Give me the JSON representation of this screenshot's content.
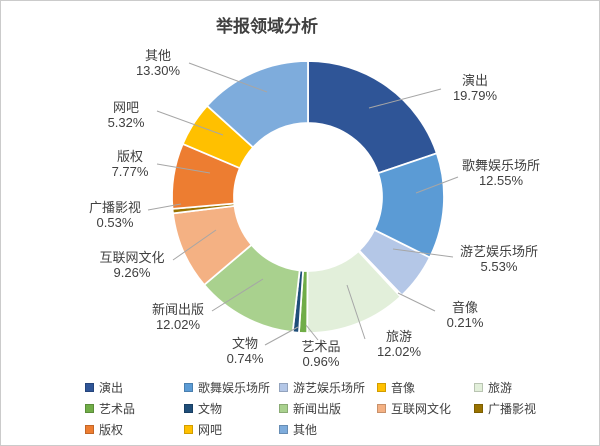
{
  "chart_data": {
    "type": "pie",
    "subtype": "donut",
    "title": "举报领域分析",
    "categories": [
      "演出",
      "歌舞娱乐场所",
      "游艺娱乐场所",
      "音像",
      "旅游",
      "艺术品",
      "文物",
      "新闻出版",
      "互联网文化",
      "广播影视",
      "版权",
      "网吧",
      "其他"
    ],
    "values": [
      19.79,
      12.55,
      5.53,
      0.21,
      12.02,
      0.96,
      0.74,
      12.02,
      9.26,
      0.53,
      7.77,
      5.32,
      13.3
    ],
    "percent_labels": [
      "19.79%",
      "12.55%",
      "5.53%",
      "0.21%",
      "12.02%",
      "0.96%",
      "0.74%",
      "12.02%",
      "9.26%",
      "0.53%",
      "7.77%",
      "5.32%",
      "13.30%"
    ],
    "colors": [
      "#2F5597",
      "#5B9BD5",
      "#B4C7E7",
      "#FFC000",
      "#E2EFDA",
      "#70AD47",
      "#1F4E79",
      "#A9D18E",
      "#F4B183",
      "#997300",
      "#ED7D31",
      "#FFC000",
      "#7EACDC"
    ],
    "legend_position": "bottom",
    "direction": "clockwise",
    "start_angle_deg": 0,
    "hole_ratio": 0.54,
    "total": "100.00",
    "leader_line_color": "#a6a6a6",
    "label_text_color": "#404040"
  }
}
